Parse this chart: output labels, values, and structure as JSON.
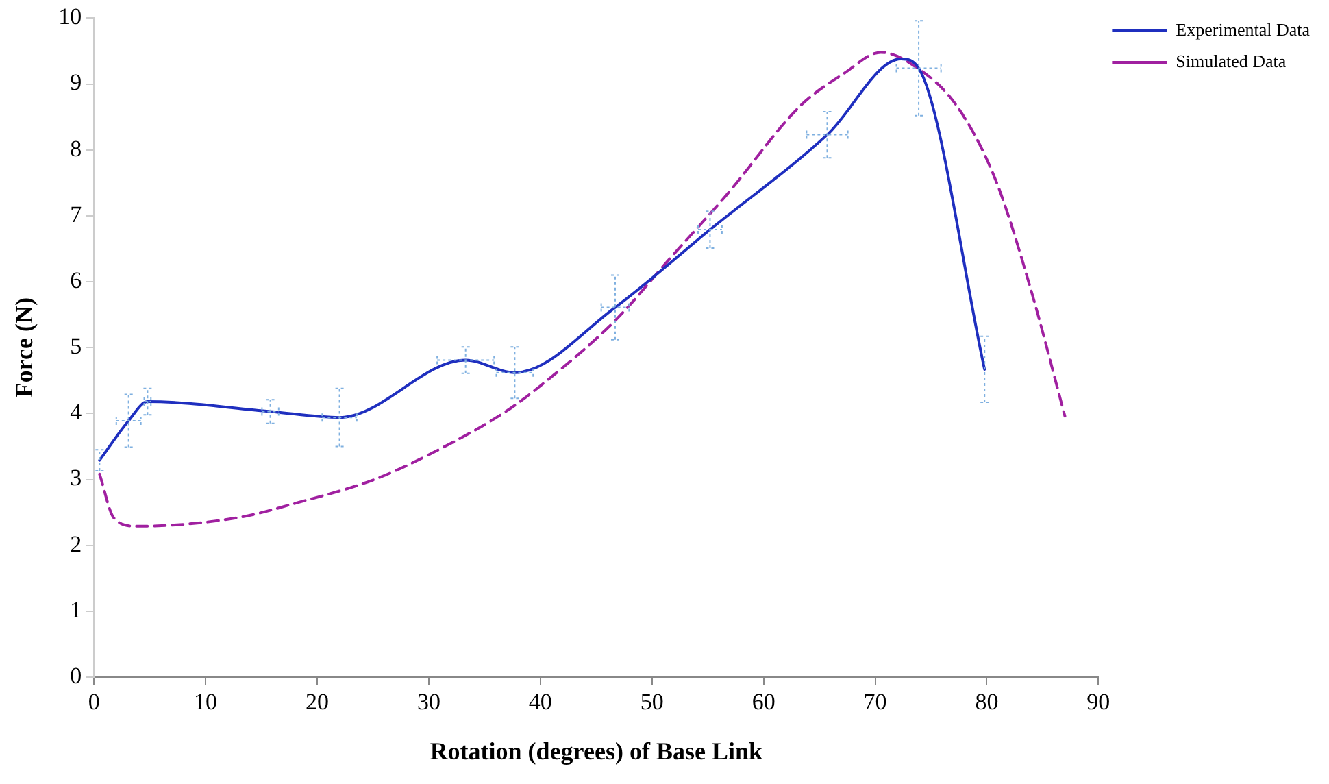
{
  "chart_data": {
    "type": "line",
    "xlabel": "Rotation (degrees) of Base Link",
    "ylabel": "Force (N)",
    "xlim": [
      0,
      90
    ],
    "xticks": [
      0,
      10,
      20,
      30,
      40,
      50,
      60,
      70,
      80,
      90
    ],
    "ylim": [
      0,
      10
    ],
    "yticks": [
      0,
      1,
      2,
      3,
      4,
      5,
      6,
      7,
      8,
      9,
      10
    ],
    "grid": false,
    "legend": "top right",
    "marker": "none",
    "series": [
      {
        "name": "Experimental Data",
        "color": "#1f2fbf",
        "line_style": "solid",
        "x": [
          0.5,
          3.1,
          4.8,
          15.8,
          22.0,
          33.3,
          37.7,
          46.7,
          55.2,
          65.7,
          72.3,
          73.9,
          79.8
        ],
        "values": [
          3.29,
          3.89,
          4.18,
          4.03,
          3.94,
          4.81,
          4.62,
          5.61,
          6.79,
          8.23,
          9.38,
          9.24,
          4.67
        ],
        "errors": [
          0.16,
          0.4,
          0.2,
          0.18,
          0.44,
          0.2,
          0.39,
          0.49,
          0.28,
          0.35,
          null,
          0.72,
          0.5
        ],
        "xerrors": [
          null,
          1.1,
          0.3,
          0.75,
          1.55,
          2.55,
          1.65,
          1.25,
          1.07,
          1.85,
          null,
          2.0,
          null
        ]
      },
      {
        "name": "Simulated Data",
        "color": "#a020a0",
        "line_style": "dashed",
        "x": [
          0.5,
          1.8,
          3.8,
          12.9,
          18.3,
          25.3,
          31.1,
          36.9,
          40.0,
          46.7,
          51.7,
          56.7,
          63.3,
          67.2,
          70.5,
          73.8,
          77.3,
          80.8,
          83.9,
          87.0
        ],
        "values": [
          3.08,
          2.41,
          2.29,
          2.42,
          2.65,
          3.01,
          3.47,
          4.03,
          4.42,
          5.41,
          6.37,
          7.32,
          8.67,
          9.16,
          9.48,
          9.24,
          8.67,
          7.54,
          5.91,
          3.96
        ]
      }
    ]
  }
}
